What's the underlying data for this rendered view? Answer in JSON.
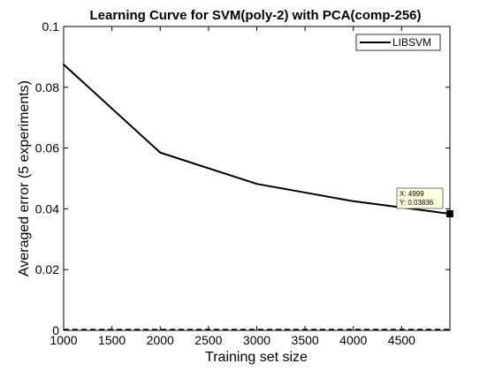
{
  "chart_data": {
    "type": "line",
    "title": "Learning Curve for SVM(poly-2) with PCA(comp-256)",
    "xlabel": "Training set size",
    "ylabel": "Averaged error (5 experiments)",
    "xlim": [
      1000,
      5000
    ],
    "ylim": [
      0,
      0.1
    ],
    "xticks": [
      1000,
      1500,
      2000,
      2500,
      3000,
      3500,
      4000,
      4500
    ],
    "xtick_labels": [
      "1000",
      "1500",
      "2000",
      "2500",
      "3000",
      "3500",
      "4000",
      "4500"
    ],
    "yticks": [
      0,
      0.02,
      0.04,
      0.06,
      0.08,
      0.1
    ],
    "ytick_labels": [
      "0",
      "0.02",
      "0.04",
      "0.06",
      "0.08",
      "0.1"
    ],
    "grid": false,
    "legend_position": "top-right",
    "series": [
      {
        "name": "LIBSVM",
        "color": "#000000",
        "x": [
          1000,
          2000,
          3000,
          4000,
          4999
        ],
        "y": [
          0.0875,
          0.0585,
          0.0482,
          0.0425,
          0.03836
        ]
      }
    ],
    "datatip": {
      "x_text": "X: 4999",
      "y_text": "Y: 0.03836",
      "x": 4999,
      "y": 0.03836
    }
  }
}
